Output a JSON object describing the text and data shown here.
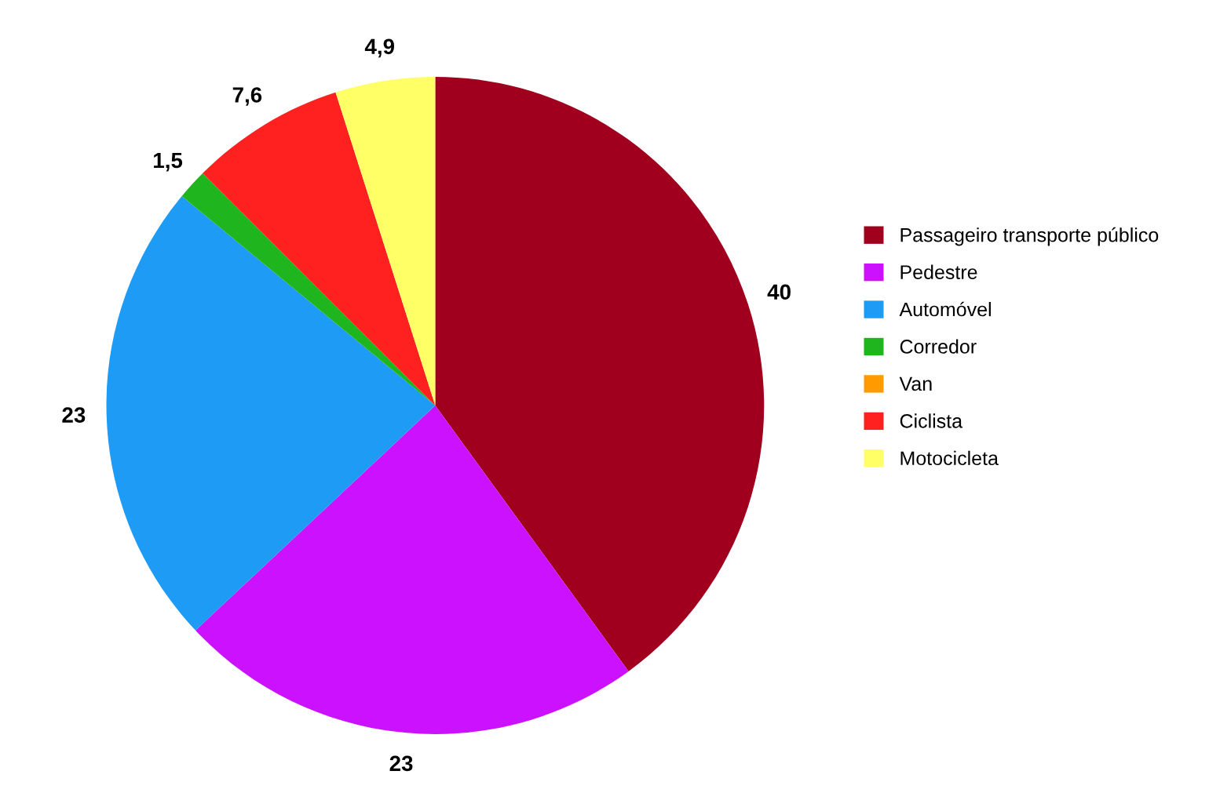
{
  "chart_data": {
    "type": "pie",
    "categories": [
      "Passageiro transporte público",
      "Pedestre",
      "Automóvel",
      "Corredor",
      "Van",
      "Ciclista",
      "Motocicleta"
    ],
    "values": [
      40,
      23,
      23,
      1.5,
      0,
      7.6,
      4.9
    ],
    "colors": [
      "#a0001e",
      "#cc11ff",
      "#1e9bf5",
      "#1fb51f",
      "#ff9a00",
      "#ff2020",
      "#ffff66"
    ],
    "value_labels": [
      "40",
      "23",
      "23",
      "1,5",
      null,
      "7,6",
      "4,9"
    ],
    "legend": "right"
  }
}
